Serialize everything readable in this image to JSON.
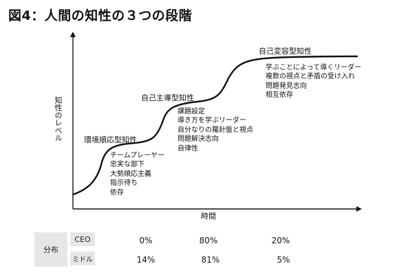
{
  "title": "図4：人間の知性の３つの段階",
  "axes": {
    "y_label": "知性のレベル",
    "x_label": "時間"
  },
  "stages": [
    {
      "name": "環境順応型知性",
      "traits": [
        "チームプレーヤー",
        "忠実な部下",
        "大勢順応主義",
        "指示待ち",
        "依存"
      ]
    },
    {
      "name": "自己主導型知性",
      "traits": [
        "課題設定",
        "導き方を学ぶリーダー",
        "自分なりの羅針盤と視点",
        "問題解決志向",
        "自律性"
      ]
    },
    {
      "name": "自己変容型知性",
      "traits": [
        "学ぶことによって導くリーダー",
        "複数の視点と矛盾の受け入れ",
        "問題発見志向",
        "相互依存"
      ]
    }
  ],
  "distribution": {
    "label": "分布",
    "rows": [
      {
        "group": "CEO",
        "values": [
          "0%",
          "80%",
          "20%"
        ]
      },
      {
        "group": "ミドル",
        "values": [
          "14%",
          "81%",
          "5%"
        ]
      }
    ]
  }
}
